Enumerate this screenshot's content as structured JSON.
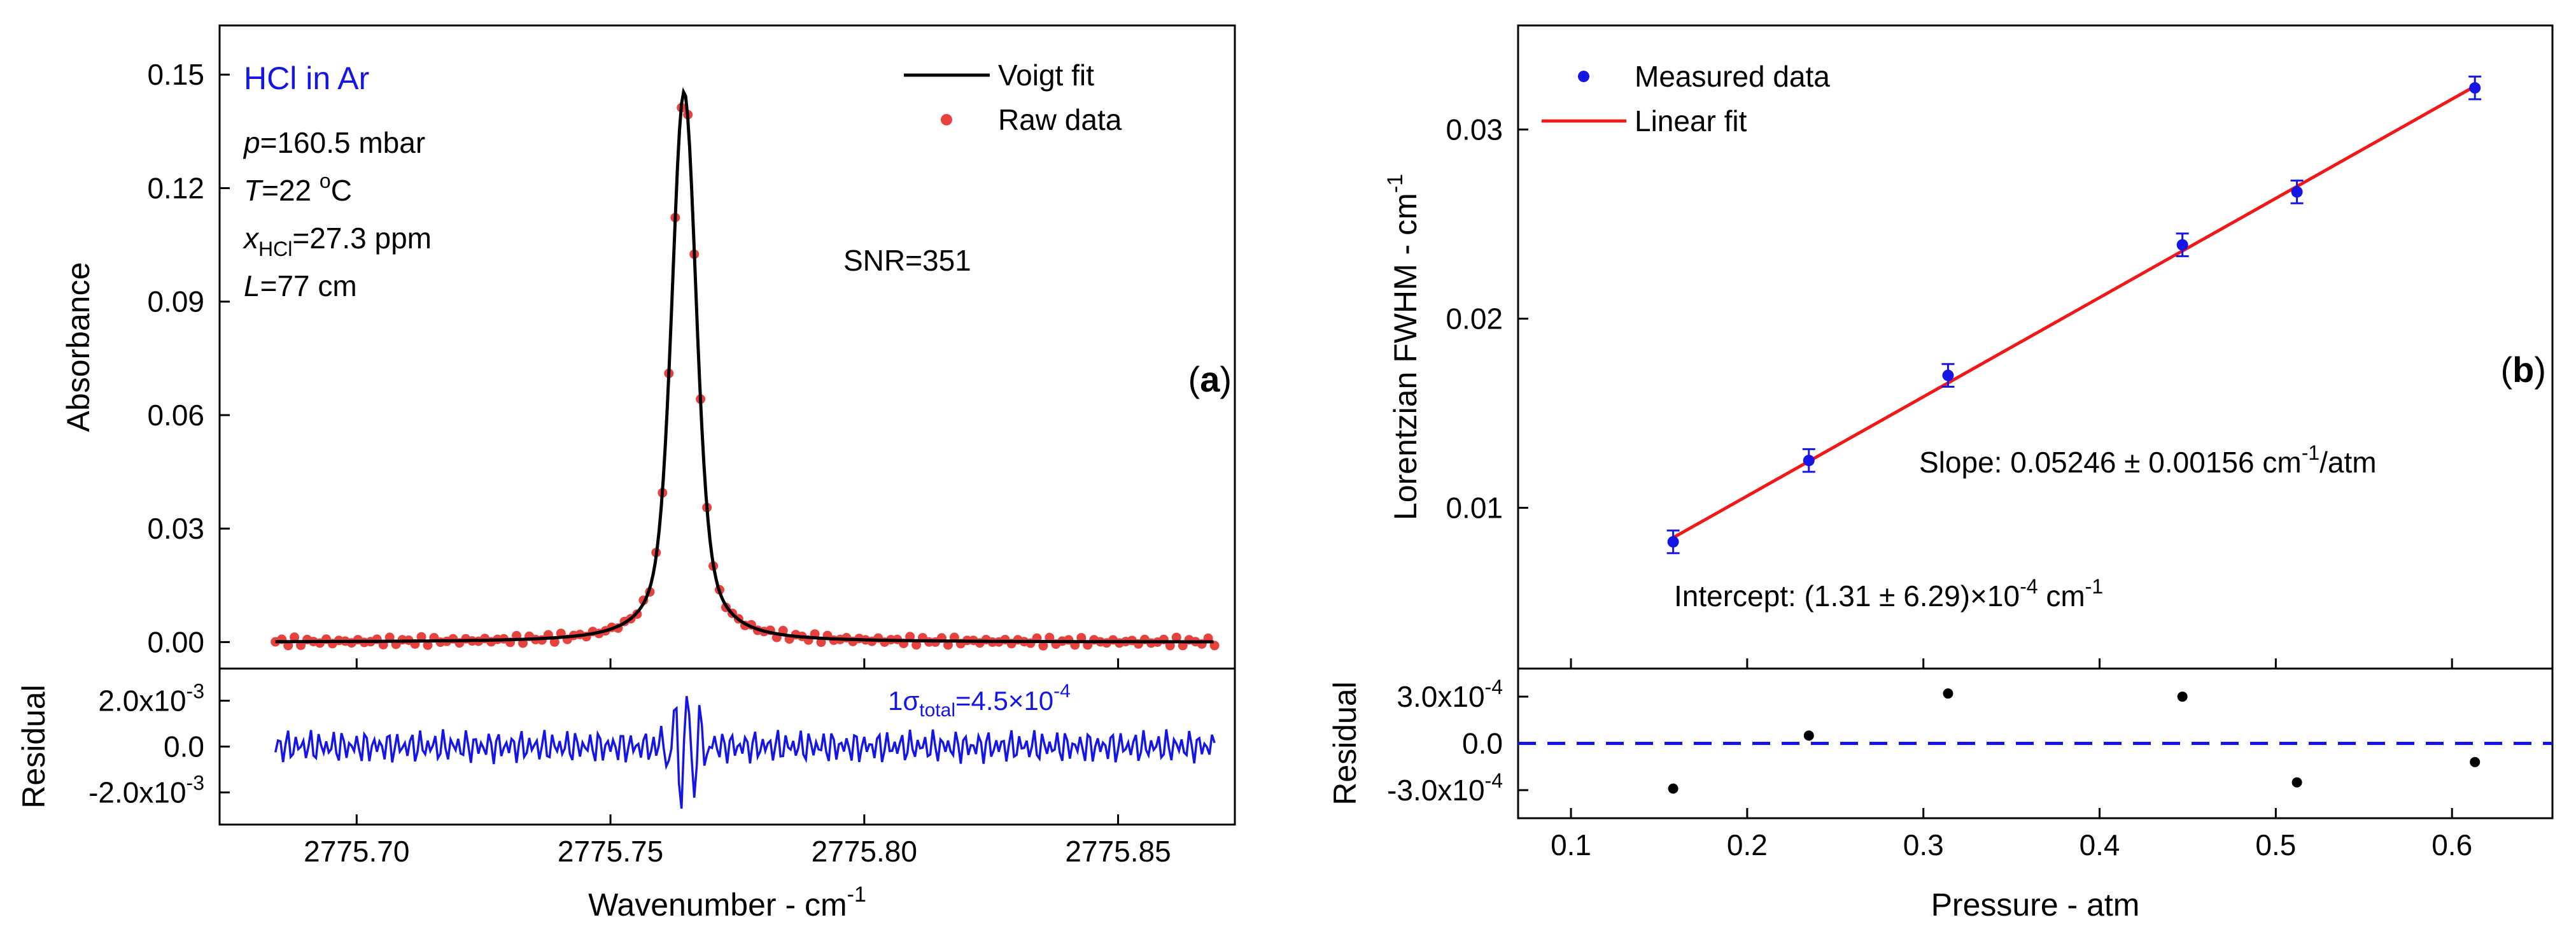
{
  "chart_data": [
    {
      "id": "a",
      "type": "line",
      "panel_label": "a",
      "title": "HCl in Ar",
      "xlabel": "Wavenumber - cm",
      "xlabel_sup": "-1",
      "ylabel": "Absorbance",
      "xlim": [
        2775.673,
        2775.873
      ],
      "ylim": [
        -0.007,
        0.163
      ],
      "xticks": [
        2775.7,
        2775.75,
        2775.8,
        2775.85
      ],
      "xtick_labels": [
        "2775.70",
        "2775.75",
        "2775.80",
        "2775.85"
      ],
      "yticks": [
        0.0,
        0.03,
        0.06,
        0.09,
        0.12,
        0.15
      ],
      "ytick_labels": [
        "0.00",
        "0.03",
        "0.06",
        "0.09",
        "0.12",
        "0.15"
      ],
      "legend": [
        {
          "name": "Voigt fit",
          "color": "#000000",
          "kind": "line"
        },
        {
          "name": "Raw data",
          "color": "#e8423f",
          "kind": "marker"
        }
      ],
      "legend_position": "top-right",
      "conditions": [
        {
          "var": "p",
          "sub": "",
          "value": "=160.5 mbar"
        },
        {
          "var": "T",
          "sub": "",
          "value": "=22 ",
          "sup": "o",
          "tail": "C"
        },
        {
          "var": "x",
          "sub": "HCl",
          "value": "=27.3 ppm"
        },
        {
          "var": "L",
          "sub": "",
          "value": "=77 cm"
        }
      ],
      "snr": "SNR=351",
      "peak": {
        "center": 2775.7645,
        "amplitude": 0.1455,
        "gaussian_sigma": 0.0023,
        "lorentzian_hwhm": 0.0034
      },
      "series_range": [
        2775.684,
        2775.869
      ],
      "residual": {
        "ylabel": "Residual",
        "ylim": [
          -0.0034,
          0.0034
        ],
        "yticks": [
          -0.002,
          0.0,
          0.002
        ],
        "ytick_labels": [
          "-2.0x10",
          "0.0",
          "2.0x10"
        ],
        "ytick_sups": [
          "-3",
          "",
          "-3"
        ],
        "sigma_prefix": "1σ",
        "sigma_sub": "total",
        "sigma_value": "=4.5×10",
        "sigma_sup": "-4",
        "noise_rms": 0.00045,
        "color": "#1515e6"
      },
      "colors": {
        "fit": "#000000",
        "raw": "#e8423f",
        "title": "#1515e6"
      }
    },
    {
      "id": "b",
      "type": "scatter",
      "panel_label": "b",
      "xlabel": "Pressure - atm",
      "ylabel": "Lorentzian FWHM - cm",
      "ylabel_sup": "-1",
      "xlim": [
        0.07,
        0.657
      ],
      "ylim": [
        0.0015,
        0.0355
      ],
      "xticks": [
        0.1,
        0.2,
        0.3,
        0.4,
        0.5,
        0.6
      ],
      "xtick_labels": [
        "0.1",
        "0.2",
        "0.3",
        "0.4",
        "0.5",
        "0.6"
      ],
      "yticks": [
        0.01,
        0.02,
        0.03
      ],
      "ytick_labels": [
        "0.01",
        "0.02",
        "0.03"
      ],
      "series": [
        {
          "name": "Measured data",
          "x": [
            0.158,
            0.235,
            0.314,
            0.447,
            0.512,
            0.613
          ],
          "y": [
            0.0082,
            0.0125,
            0.017,
            0.0239,
            0.0267,
            0.0322
          ],
          "err": [
            0.0006,
            0.0006,
            0.0006,
            0.0006,
            0.0006,
            0.0006
          ],
          "color": "#1515e6"
        }
      ],
      "fit": {
        "name": "Linear fit",
        "slope": 0.05246,
        "intercept": 0.000131,
        "x_range": [
          0.158,
          0.613
        ],
        "color": "#f01818"
      },
      "legend_position": "top-left",
      "slope_text": {
        "prefix": "Slope: 0.05246 ± 0.00156 cm",
        "sup": "-1",
        "suffix": "/atm"
      },
      "intercept_text": {
        "prefix": "Intercept: (1.31 ± 6.29)×10",
        "sup": "-4",
        "mid": " cm",
        "sup2": "-1"
      },
      "residual": {
        "ylabel": "Residual",
        "ylim": [
          -0.00048,
          0.00048
        ],
        "yticks": [
          -0.0003,
          0.0,
          0.0003
        ],
        "ytick_labels": [
          "-3.0x10",
          "0.0",
          "3.0x10"
        ],
        "ytick_sups": [
          "-4",
          "",
          "-4"
        ],
        "x": [
          0.158,
          0.235,
          0.314,
          0.447,
          0.512,
          0.613
        ],
        "values": [
          -0.00029,
          5e-05,
          0.00032,
          0.0003,
          -0.00025,
          -0.00012
        ],
        "zero_line_color": "#1515e6"
      }
    }
  ]
}
